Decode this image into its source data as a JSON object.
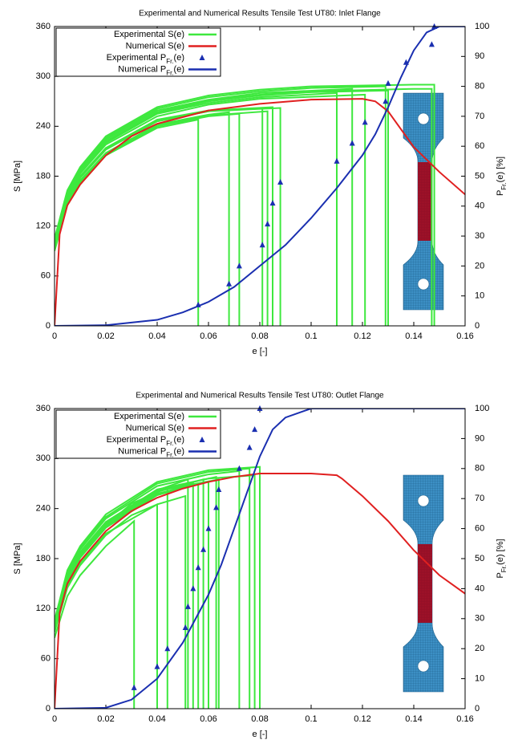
{
  "chart_data": [
    {
      "type": "line",
      "title": "Experimental and Numerical Results Tensile Test UT80: Inlet Flange",
      "xlabel": "e [-]",
      "ylabel": "S [MPa]",
      "y2label": "PFr.(e) [%]",
      "xlim": [
        0,
        0.16
      ],
      "xticks": [
        0,
        0.02,
        0.04,
        0.06,
        0.08,
        0.1,
        0.12,
        0.14,
        0.16
      ],
      "ylim": [
        0,
        360
      ],
      "yticks": [
        0,
        60,
        120,
        180,
        240,
        300,
        360
      ],
      "y2lim": [
        0,
        100
      ],
      "y2ticks": [
        0,
        10,
        20,
        30,
        40,
        50,
        60,
        70,
        80,
        90,
        100
      ],
      "legend": "upper left",
      "series": [
        {
          "name": "Experimental S(e)",
          "color": "#3ee83e",
          "curves": [
            {
              "x": [
                0,
                0.005,
                0.01,
                0.02,
                0.04,
                0.056,
                0.056
              ],
              "values": [
                90,
                145,
                170,
                205,
                238,
                248,
                0
              ]
            },
            {
              "x": [
                0,
                0.005,
                0.01,
                0.02,
                0.04,
                0.06,
                0.068,
                0.068
              ],
              "values": [
                95,
                150,
                175,
                208,
                242,
                254,
                257,
                0
              ]
            },
            {
              "x": [
                0,
                0.005,
                0.01,
                0.02,
                0.04,
                0.06,
                0.072,
                0.072
              ],
              "values": [
                92,
                148,
                172,
                205,
                240,
                252,
                255,
                0
              ]
            },
            {
              "x": [
                0,
                0.005,
                0.01,
                0.02,
                0.04,
                0.06,
                0.081,
                0.081
              ],
              "values": [
                98,
                152,
                178,
                212,
                246,
                258,
                262,
                0
              ]
            },
            {
              "x": [
                0,
                0.005,
                0.01,
                0.02,
                0.04,
                0.06,
                0.083,
                0.083
              ],
              "values": [
                94,
                149,
                174,
                207,
                242,
                253,
                258,
                0
              ]
            },
            {
              "x": [
                0,
                0.005,
                0.01,
                0.02,
                0.04,
                0.06,
                0.085,
                0.085
              ],
              "values": [
                99,
                154,
                180,
                214,
                248,
                259,
                263,
                0
              ]
            },
            {
              "x": [
                0,
                0.005,
                0.01,
                0.02,
                0.04,
                0.06,
                0.088,
                0.088
              ],
              "values": [
                97,
                152,
                178,
                212,
                246,
                258,
                262,
                0
              ]
            },
            {
              "x": [
                0,
                0.005,
                0.01,
                0.02,
                0.04,
                0.06,
                0.08,
                0.11,
                0.11
              ],
              "values": [
                100,
                158,
                185,
                220,
                255,
                268,
                275,
                280,
                0
              ]
            },
            {
              "x": [
                0,
                0.005,
                0.01,
                0.02,
                0.04,
                0.06,
                0.08,
                0.116,
                0.116
              ],
              "values": [
                102,
                160,
                188,
                224,
                259,
                272,
                280,
                285,
                0
              ]
            },
            {
              "x": [
                0,
                0.005,
                0.01,
                0.02,
                0.04,
                0.06,
                0.08,
                0.121,
                0.121
              ],
              "values": [
                98,
                155,
                183,
                218,
                252,
                266,
                273,
                278,
                0
              ]
            },
            {
              "x": [
                0,
                0.005,
                0.01,
                0.02,
                0.04,
                0.06,
                0.08,
                0.1,
                0.129,
                0.129
              ],
              "values": [
                104,
                162,
                190,
                226,
                261,
                275,
                282,
                286,
                288,
                0
              ]
            },
            {
              "x": [
                0,
                0.005,
                0.01,
                0.02,
                0.04,
                0.06,
                0.08,
                0.1,
                0.13,
                0.13
              ],
              "values": [
                100,
                158,
                186,
                221,
                256,
                270,
                277,
                281,
                283,
                0
              ]
            },
            {
              "x": [
                0,
                0.005,
                0.01,
                0.02,
                0.04,
                0.06,
                0.08,
                0.1,
                0.14,
                0.147,
                0.147
              ],
              "values": [
                101,
                159,
                187,
                222,
                257,
                271,
                278,
                282,
                285,
                285,
                0
              ]
            },
            {
              "x": [
                0,
                0.005,
                0.01,
                0.02,
                0.04,
                0.06,
                0.08,
                0.1,
                0.14,
                0.148,
                0.148
              ],
              "values": [
                105,
                163,
                191,
                228,
                263,
                277,
                284,
                288,
                290,
                290,
                0
              ]
            }
          ]
        },
        {
          "name": "Numerical S(e)",
          "color": "#e02020",
          "x": [
            0,
            0.002,
            0.005,
            0.01,
            0.02,
            0.03,
            0.04,
            0.06,
            0.08,
            0.1,
            0.12,
            0.125,
            0.13,
            0.14,
            0.15,
            0.16
          ],
          "values": [
            0,
            110,
            145,
            170,
            205,
            228,
            243,
            259,
            267,
            272,
            273,
            270,
            258,
            215,
            185,
            158
          ]
        },
        {
          "name": "Experimental PFr.(e)",
          "color": "#1a2fb0",
          "marker": "triangle",
          "axis": "y2",
          "x": [
            0.056,
            0.068,
            0.072,
            0.081,
            0.083,
            0.085,
            0.088,
            0.11,
            0.116,
            0.121,
            0.129,
            0.13,
            0.137,
            0.147,
            0.148
          ],
          "values": [
            7,
            14,
            20,
            27,
            34,
            41,
            48,
            55,
            61,
            68,
            75,
            81,
            88,
            94,
            100
          ]
        },
        {
          "name": "Numerical PFr.(e)",
          "color": "#1a2fb0",
          "axis": "y2",
          "x": [
            0,
            0.02,
            0.04,
            0.05,
            0.06,
            0.07,
            0.08,
            0.09,
            0.1,
            0.11,
            0.12,
            0.125,
            0.13,
            0.135,
            0.14,
            0.145,
            0.15,
            0.16
          ],
          "values": [
            0,
            0.2,
            2,
            4.5,
            8,
            13,
            20,
            27,
            36,
            46,
            57,
            64,
            73,
            83,
            92,
            98,
            100,
            100
          ]
        }
      ]
    },
    {
      "type": "line",
      "title": "Experimental and Numerical Results Tensile Test UT80: Outlet Flange",
      "xlabel": "e [-]",
      "ylabel": "S [MPa]",
      "y2label": "PFr.(e) [%]",
      "xlim": [
        0,
        0.16
      ],
      "xticks": [
        0,
        0.02,
        0.04,
        0.06,
        0.08,
        0.1,
        0.12,
        0.14,
        0.16
      ],
      "ylim": [
        0,
        360
      ],
      "yticks": [
        0,
        60,
        120,
        180,
        240,
        300,
        360
      ],
      "y2lim": [
        0,
        100
      ],
      "y2ticks": [
        0,
        10,
        20,
        30,
        40,
        50,
        60,
        70,
        80,
        90,
        100
      ],
      "legend": "upper left",
      "series": [
        {
          "name": "Experimental S(e)",
          "color": "#3ee83e",
          "curves": [
            {
              "x": [
                0,
                0.005,
                0.01,
                0.02,
                0.031,
                0.031
              ],
              "values": [
                85,
                135,
                160,
                195,
                225,
                0
              ]
            },
            {
              "x": [
                0,
                0.005,
                0.01,
                0.02,
                0.03,
                0.04,
                0.04
              ],
              "values": [
                92,
                145,
                172,
                208,
                232,
                245,
                0
              ]
            },
            {
              "x": [
                0,
                0.005,
                0.01,
                0.02,
                0.03,
                0.044,
                0.044
              ],
              "values": [
                98,
                155,
                183,
                220,
                246,
                265,
                0
              ]
            },
            {
              "x": [
                0,
                0.005,
                0.01,
                0.02,
                0.04,
                0.051,
                0.051
              ],
              "values": [
                94,
                148,
                175,
                210,
                245,
                255,
                0
              ]
            },
            {
              "x": [
                0,
                0.005,
                0.01,
                0.02,
                0.04,
                0.052,
                0.052
              ],
              "values": [
                100,
                158,
                186,
                222,
                262,
                275,
                0
              ]
            },
            {
              "x": [
                0,
                0.005,
                0.01,
                0.02,
                0.04,
                0.054,
                0.054
              ],
              "values": [
                97,
                154,
                182,
                218,
                257,
                270,
                0
              ]
            },
            {
              "x": [
                0,
                0.005,
                0.01,
                0.02,
                0.04,
                0.056,
                0.056
              ],
              "values": [
                96,
                153,
                181,
                217,
                256,
                270,
                0
              ]
            },
            {
              "x": [
                0,
                0.005,
                0.01,
                0.02,
                0.04,
                0.058,
                0.058
              ],
              "values": [
                99,
                157,
                185,
                221,
                260,
                275,
                0
              ]
            },
            {
              "x": [
                0,
                0.005,
                0.01,
                0.02,
                0.04,
                0.06,
                0.06
              ],
              "values": [
                98,
                155,
                183,
                219,
                258,
                272,
                0
              ]
            },
            {
              "x": [
                0,
                0.005,
                0.01,
                0.02,
                0.04,
                0.063,
                0.063
              ],
              "values": [
                101,
                159,
                188,
                224,
                263,
                278,
                0
              ]
            },
            {
              "x": [
                0,
                0.005,
                0.01,
                0.02,
                0.04,
                0.064,
                0.064
              ],
              "values": [
                99,
                157,
                186,
                222,
                261,
                275,
                0
              ]
            },
            {
              "x": [
                0,
                0.005,
                0.01,
                0.02,
                0.04,
                0.06,
                0.072,
                0.072
              ],
              "values": [
                103,
                162,
                191,
                228,
                267,
                281,
                285,
                0
              ]
            },
            {
              "x": [
                0,
                0.005,
                0.01,
                0.02,
                0.04,
                0.06,
                0.076,
                0.076
              ],
              "values": [
                104,
                164,
                193,
                230,
                270,
                284,
                288,
                0
              ]
            },
            {
              "x": [
                0,
                0.005,
                0.01,
                0.02,
                0.04,
                0.06,
                0.078,
                0.078
              ],
              "values": [
                100,
                158,
                187,
                223,
                262,
                276,
                280,
                0
              ]
            },
            {
              "x": [
                0,
                0.005,
                0.01,
                0.02,
                0.04,
                0.06,
                0.08,
                0.08
              ],
              "values": [
                106,
                166,
                195,
                233,
                272,
                286,
                290,
                0
              ]
            }
          ]
        },
        {
          "name": "Numerical S(e)",
          "color": "#e02020",
          "x": [
            0,
            0.002,
            0.005,
            0.01,
            0.02,
            0.03,
            0.04,
            0.05,
            0.06,
            0.07,
            0.08,
            0.1,
            0.11,
            0.112,
            0.12,
            0.13,
            0.14,
            0.15,
            0.16
          ],
          "values": [
            0,
            115,
            150,
            177,
            213,
            237,
            253,
            264,
            272,
            278,
            282,
            282,
            280,
            276,
            255,
            225,
            190,
            160,
            138
          ]
        },
        {
          "name": "Experimental PFr.(e)",
          "color": "#1a2fb0",
          "marker": "triangle",
          "axis": "y2",
          "x": [
            0.031,
            0.04,
            0.044,
            0.051,
            0.052,
            0.054,
            0.056,
            0.058,
            0.06,
            0.063,
            0.064,
            0.072,
            0.076,
            0.078,
            0.08
          ],
          "values": [
            7,
            14,
            20,
            27,
            34,
            40,
            47,
            53,
            60,
            67,
            73,
            80,
            87,
            93,
            100
          ]
        },
        {
          "name": "Numerical PFr.(e)",
          "color": "#1a2fb0",
          "axis": "y2",
          "x": [
            0,
            0.02,
            0.03,
            0.04,
            0.05,
            0.06,
            0.065,
            0.07,
            0.075,
            0.08,
            0.085,
            0.09,
            0.1,
            0.16
          ],
          "values": [
            0,
            0.3,
            3,
            10,
            22,
            38,
            48,
            60,
            72,
            84,
            93,
            97,
            100,
            100
          ]
        }
      ]
    }
  ]
}
